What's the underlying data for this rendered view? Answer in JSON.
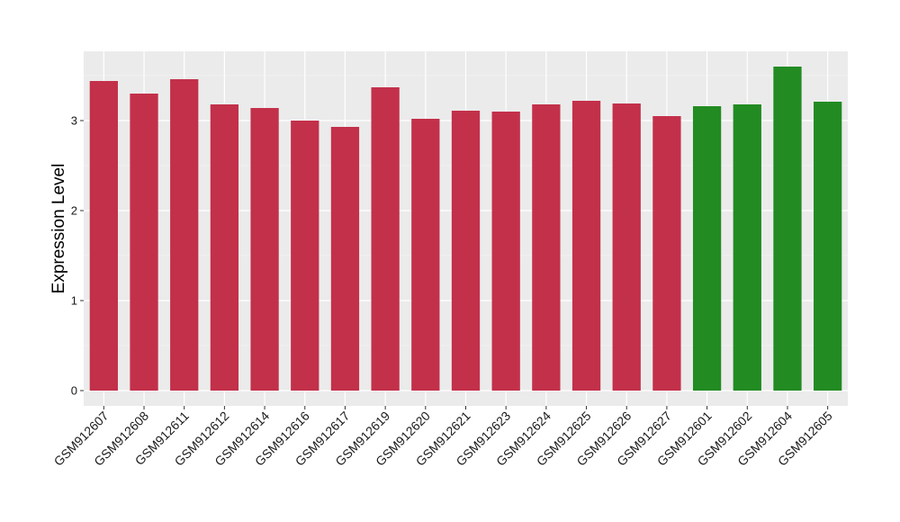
{
  "chart_data": {
    "type": "bar",
    "title": "",
    "xlabel": "",
    "ylabel": "Expression Level",
    "ylim": [
      -0.17,
      3.77
    ],
    "yticks": [
      0,
      1,
      2,
      3
    ],
    "grid": true,
    "legend": "none",
    "panel_color": "#ebebeb",
    "categories": [
      "GSM912607",
      "GSM912608",
      "GSM912611",
      "GSM912612",
      "GSM912614",
      "GSM912616",
      "GSM912617",
      "GSM912619",
      "GSM912620",
      "GSM912621",
      "GSM912623",
      "GSM912624",
      "GSM912625",
      "GSM912626",
      "GSM912627",
      "GSM912601",
      "GSM912602",
      "GSM912604",
      "GSM912605"
    ],
    "values": [
      3.44,
      3.3,
      3.46,
      3.18,
      3.14,
      3.0,
      2.93,
      3.37,
      3.02,
      3.11,
      3.1,
      3.18,
      3.22,
      3.19,
      3.05,
      3.16,
      3.18,
      3.6,
      3.21
    ],
    "colors": [
      "#c3304a",
      "#c3304a",
      "#c3304a",
      "#c3304a",
      "#c3304a",
      "#c3304a",
      "#c3304a",
      "#c3304a",
      "#c3304a",
      "#c3304a",
      "#c3304a",
      "#c3304a",
      "#c3304a",
      "#c3304a",
      "#c3304a",
      "#228b22",
      "#228b22",
      "#228b22",
      "#228b22"
    ]
  }
}
